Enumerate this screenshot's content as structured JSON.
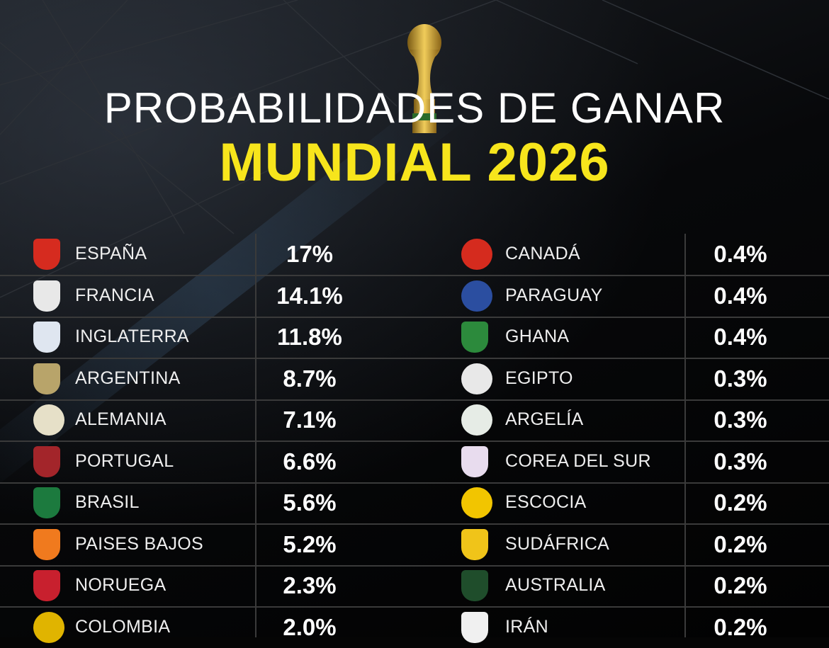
{
  "title_line1": "PROBABILIDADES DE GANAR",
  "title_line2": "MUNDIAL 2026",
  "colors": {
    "background": "#050505",
    "title_accent": "#f7e51c",
    "text": "#ffffff"
  },
  "chart_data": {
    "type": "table",
    "columns": [
      [
        {
          "team": "ESPAÑA",
          "probability": "17%",
          "crest_color": "#d62b1f"
        },
        {
          "team": "FRANCIA",
          "probability": "14.1%",
          "crest_color": "#e8e8e8"
        },
        {
          "team": "INGLATERRA",
          "probability": "11.8%",
          "crest_color": "#dfe6f0"
        },
        {
          "team": "ARGENTINA",
          "probability": "8.7%",
          "crest_color": "#b8a46a"
        },
        {
          "team": "ALEMANIA",
          "probability": "7.1%",
          "crest_color": "#e6e0c8"
        },
        {
          "team": "PORTUGAL",
          "probability": "6.6%",
          "crest_color": "#a3252a"
        },
        {
          "team": "BRASIL",
          "probability": "5.6%",
          "crest_color": "#1c7a3e"
        },
        {
          "team": "PAISES BAJOS",
          "probability": "5.2%",
          "crest_color": "#f07a1e"
        },
        {
          "team": "NORUEGA",
          "probability": "2.3%",
          "crest_color": "#c8202e"
        },
        {
          "team": "COLOMBIA",
          "probability": "2.0%",
          "crest_color": "#e0b400"
        }
      ],
      [
        {
          "team": "CANADÁ",
          "probability": "0.4%",
          "crest_color": "#d52b1e"
        },
        {
          "team": "PARAGUAY",
          "probability": "0.4%",
          "crest_color": "#2b4ea0"
        },
        {
          "team": "GHANA",
          "probability": "0.4%",
          "crest_color": "#2c8a3c"
        },
        {
          "team": "EGIPTO",
          "probability": "0.3%",
          "crest_color": "#e8e8e8"
        },
        {
          "team": "ARGELÍA",
          "probability": "0.3%",
          "crest_color": "#e6ece6"
        },
        {
          "team": "COREA DEL SUR",
          "probability": "0.3%",
          "crest_color": "#e8dcee"
        },
        {
          "team": "ESCOCIA",
          "probability": "0.2%",
          "crest_color": "#f2c500"
        },
        {
          "team": "SUDÁFRICA",
          "probability": "0.2%",
          "crest_color": "#f0c419"
        },
        {
          "team": "AUSTRALIA",
          "probability": "0.2%",
          "crest_color": "#1f4d2b"
        },
        {
          "team": "IRÁN",
          "probability": "0.2%",
          "crest_color": "#f0f0f0"
        }
      ]
    ]
  }
}
